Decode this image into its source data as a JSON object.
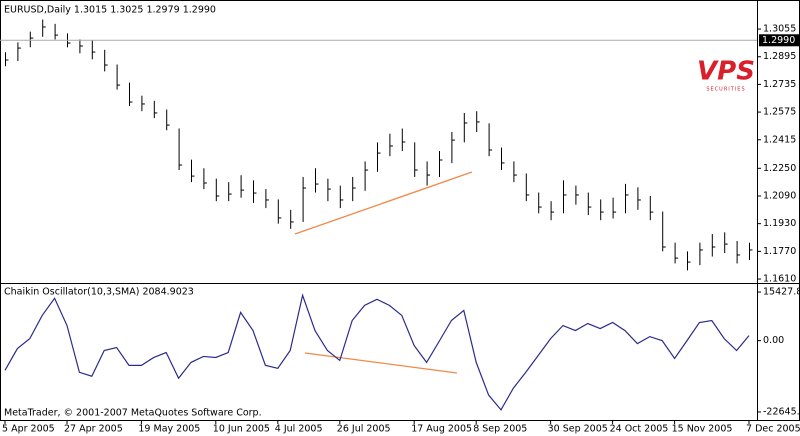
{
  "chart_data": [
    {
      "type": "hlc",
      "title": "EURUSD,Daily  1.3015 1.3025 1.2979 1.2990",
      "color": "#000000",
      "categories": [
        "5 Apr 2005",
        null,
        null,
        null,
        null,
        "27 Apr 2005",
        null,
        null,
        null,
        null,
        null,
        "19 May 2005",
        null,
        null,
        null,
        null,
        null,
        "10 Jun 2005",
        null,
        null,
        null,
        null,
        "4 Jul 2005",
        null,
        null,
        null,
        null,
        "26 Jul 2005",
        null,
        null,
        null,
        null,
        null,
        "17 Aug 2005",
        null,
        null,
        null,
        null,
        "8 Sep 2005",
        null,
        null,
        null,
        null,
        null,
        "30 Sep 2005",
        null,
        null,
        null,
        null,
        "24 Oct 2005",
        null,
        null,
        null,
        null,
        "15 Nov 2005",
        null,
        null,
        null,
        null,
        null,
        "7 Dec 2005"
      ],
      "high": [
        1.2921,
        1.2978,
        1.304,
        1.311,
        1.3085,
        1.303,
        1.2995,
        1.299,
        1.2935,
        1.285,
        1.2745,
        1.267,
        1.264,
        1.259,
        1.248,
        1.23,
        1.225,
        1.219,
        1.217,
        1.221,
        1.218,
        1.213,
        1.207,
        1.201,
        1.22,
        1.225,
        1.219,
        1.215,
        1.22,
        1.229,
        1.24,
        1.245,
        1.248,
        1.24,
        1.229,
        1.235,
        1.246,
        1.257,
        1.258,
        1.251,
        1.237,
        1.229,
        1.222,
        1.211,
        1.206,
        1.218,
        1.215,
        1.211,
        1.207,
        1.208,
        1.216,
        1.214,
        1.209,
        1.2,
        1.182,
        1.177,
        1.182,
        1.187,
        1.188,
        1.183,
        1.182
      ],
      "low": [
        1.284,
        1.287,
        1.295,
        1.301,
        1.2995,
        1.295,
        1.2915,
        1.288,
        1.281,
        1.2705,
        1.261,
        1.258,
        1.254,
        1.247,
        1.224,
        1.217,
        1.213,
        1.206,
        1.206,
        1.208,
        1.205,
        1.202,
        1.193,
        1.19,
        1.194,
        1.211,
        1.206,
        1.202,
        1.206,
        1.212,
        1.223,
        1.232,
        1.235,
        1.22,
        1.215,
        1.22,
        1.228,
        1.24,
        1.246,
        1.232,
        1.224,
        1.217,
        1.206,
        1.199,
        1.195,
        1.199,
        1.204,
        1.198,
        1.195,
        1.196,
        1.199,
        1.201,
        1.195,
        1.177,
        1.17,
        1.166,
        1.169,
        1.174,
        1.176,
        1.17,
        1.172
      ],
      "close": [
        1.2876,
        1.2945,
        1.3003,
        1.3067,
        1.302,
        1.2974,
        1.2957,
        1.2922,
        1.2847,
        1.2731,
        1.2633,
        1.2622,
        1.257,
        1.25,
        1.2269,
        1.2205,
        1.2165,
        1.209,
        1.2101,
        1.2124,
        1.2107,
        1.2067,
        1.1963,
        1.194,
        1.2136,
        1.2159,
        1.213,
        1.2067,
        1.2136,
        1.224,
        1.2338,
        1.2379,
        1.2402,
        1.224,
        1.2211,
        1.2298,
        1.2413,
        1.2512,
        1.2518,
        1.2356,
        1.2281,
        1.2211,
        1.2096,
        1.2026,
        1.1997,
        1.2096,
        1.2096,
        1.2026,
        1.1997,
        1.1997,
        1.2096,
        1.2067,
        1.1997,
        1.1795,
        1.1731,
        1.1708,
        1.1778,
        1.1795,
        1.1812,
        1.1749,
        1.1778
      ],
      "ylim": [
        1.1587,
        1.3194
      ],
      "yticks": [
        1.3055,
        1.2895,
        1.2735,
        1.2575,
        1.2415,
        {
          "value": 1.225,
          "label": "1.2250"
        },
        {
          "value": 1.209,
          "label": "1.2090"
        },
        {
          "value": 1.193,
          "label": "1.1930"
        },
        {
          "value": 1.177,
          "label": "1.1770"
        },
        {
          "value": 1.161,
          "label": "1.1610"
        }
      ],
      "last_price": {
        "value": 1.299,
        "label": "1.2990"
      }
    },
    {
      "type": "line",
      "title": "Chaikin Oscillator(10,3,SMA) 2084.9023",
      "color": "#2b2b8c",
      "annotation": "MetaTrader, © 2001-2007 MetaQuotes Software Corp.",
      "values": [
        -9420,
        -2510,
        640,
        8000,
        13440,
        4800,
        -10050,
        -11300,
        -3140,
        -2200,
        -7850,
        -7850,
        -5340,
        -3770,
        -11930,
        -6910,
        -5020,
        -5340,
        -3770,
        8960,
        3200,
        -7850,
        -8790,
        -3140,
        14400,
        3200,
        -3140,
        -6280,
        6400,
        11200,
        13120,
        11200,
        8000,
        -1570,
        -6910,
        -314,
        6400,
        9600,
        -6910,
        -17270,
        -21980,
        -15070,
        -10050,
        -4710,
        640,
        4800,
        3200,
        5440,
        3840,
        5760,
        3200,
        -940,
        1280,
        0,
        -5650,
        0,
        5760,
        6400,
        640,
        -3140,
        1600
      ],
      "ylim": [
        -25200,
        17350
      ],
      "yticks": [
        15427.86,
        {
          "value": 0,
          "label": "0.00"
        },
        -22645.1
      ]
    }
  ],
  "watermark": {
    "text": "VPS",
    "subtitle": "SECURITIES"
  }
}
